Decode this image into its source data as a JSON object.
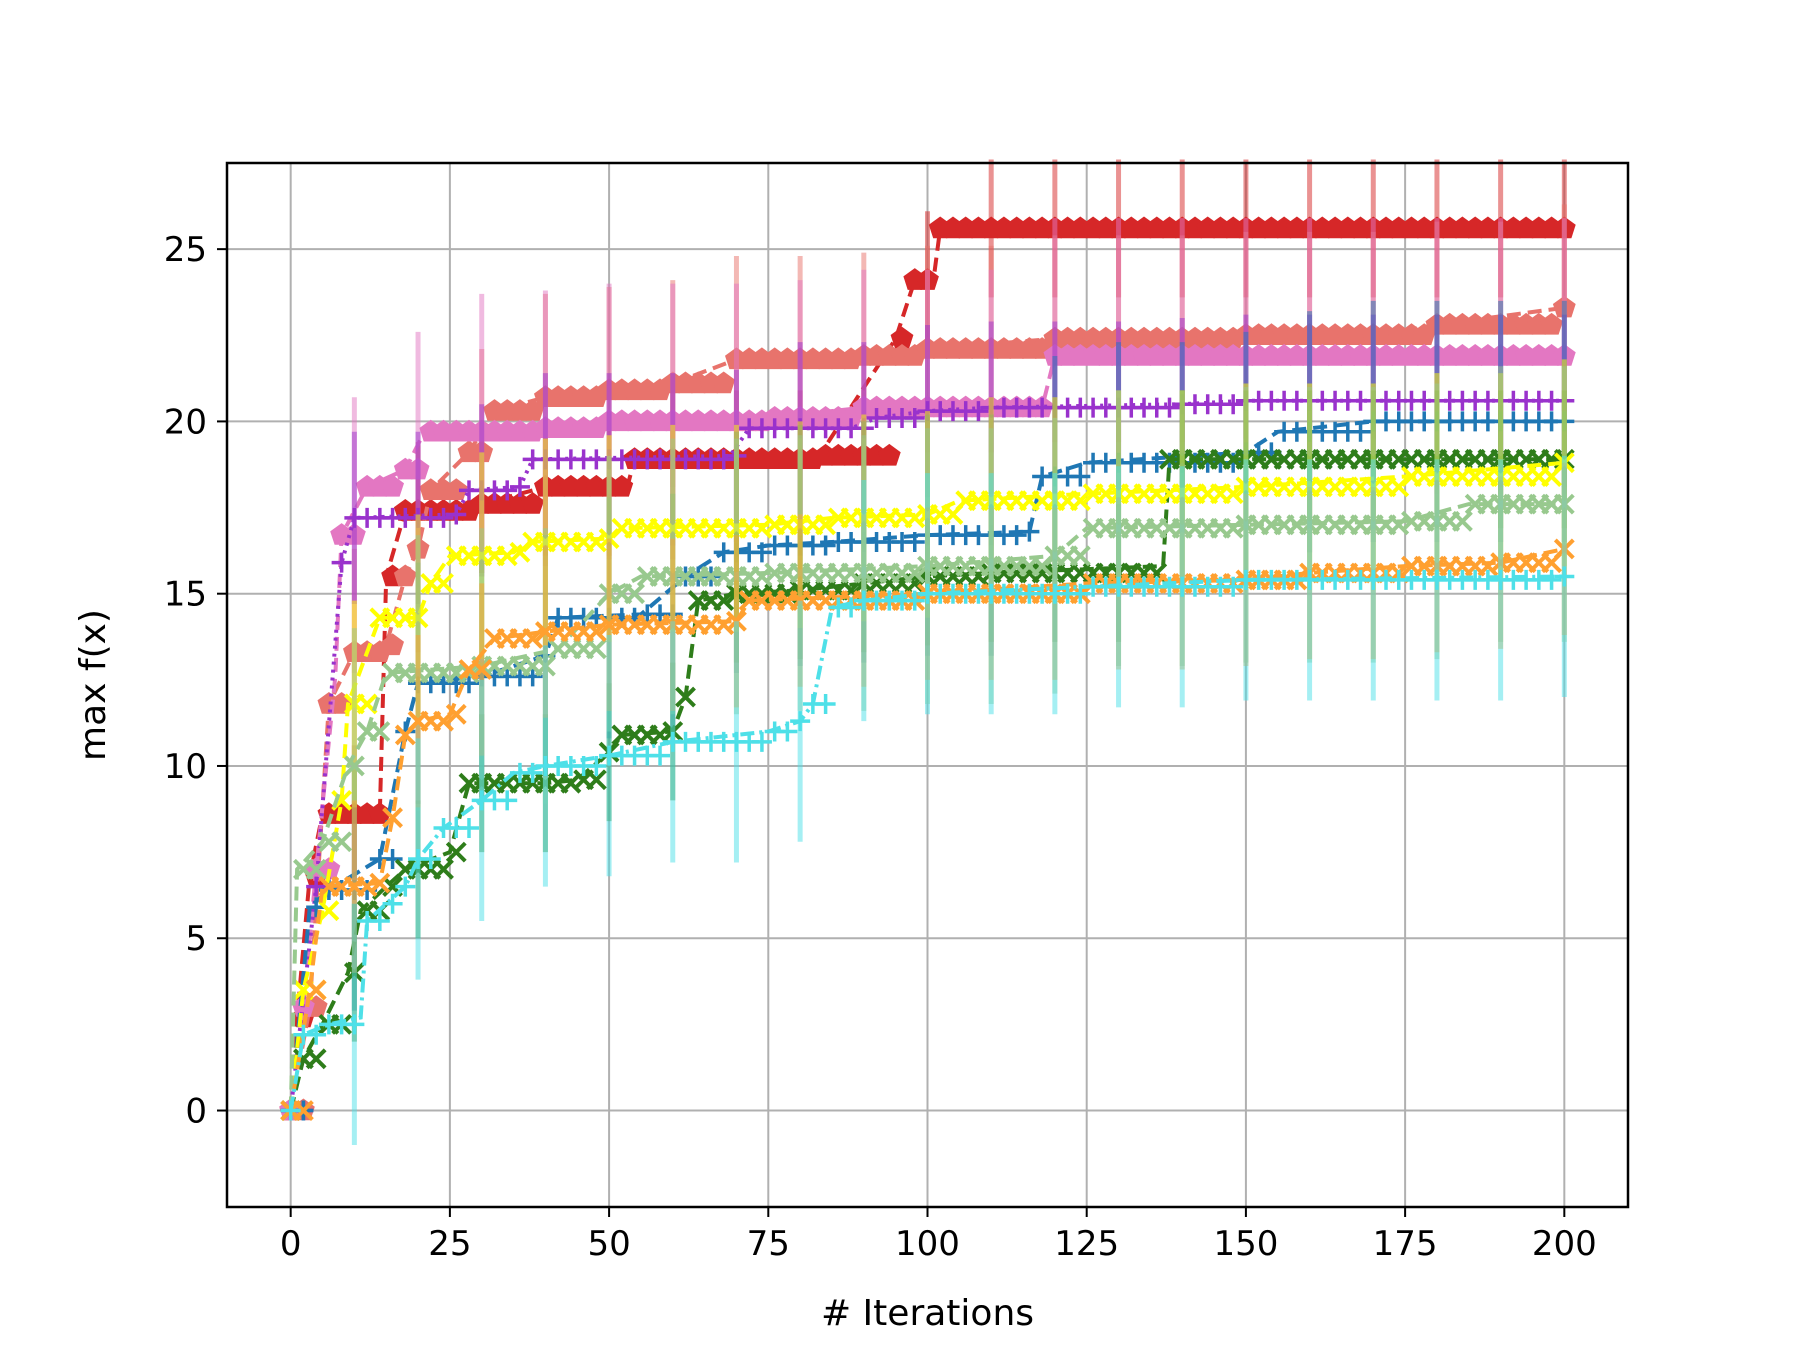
{
  "chart_data": {
    "type": "line",
    "title": "",
    "xlabel": "# Iterations",
    "ylabel": "max f(x)",
    "xlim": [
      -10,
      210
    ],
    "ylim": [
      -2.8,
      27.5
    ],
    "xticks": [
      0,
      25,
      50,
      75,
      100,
      125,
      150,
      175,
      200
    ],
    "yticks": [
      0,
      5,
      10,
      15,
      20,
      25
    ],
    "grid": true,
    "legend": "none",
    "series": [
      {
        "color": "#d62728",
        "marker": "pentagon",
        "linestyle": "dashed",
        "points": [
          [
            0,
            0
          ],
          [
            1,
            2.7
          ],
          [
            3,
            6.8
          ],
          [
            5,
            8.6
          ],
          [
            14,
            8.6
          ],
          [
            15,
            15.5
          ],
          [
            18,
            17.4
          ],
          [
            30,
            17.6
          ],
          [
            40,
            18.1
          ],
          [
            53,
            18.2
          ],
          [
            54,
            18.9
          ],
          [
            83,
            19.0
          ],
          [
            95,
            22.4
          ],
          [
            98,
            24.1
          ],
          [
            101,
            24.2
          ],
          [
            102,
            25.6
          ],
          [
            201,
            25.6
          ]
        ]
      },
      {
        "color": "#e8736c",
        "marker": "pentagon",
        "linestyle": "dashed",
        "points": [
          [
            0,
            0
          ],
          [
            3,
            3.0
          ],
          [
            6,
            11.8
          ],
          [
            10,
            13.3
          ],
          [
            15,
            13.5
          ],
          [
            18,
            15.5
          ],
          [
            20,
            16.3
          ],
          [
            22,
            18.0
          ],
          [
            28,
            19.1
          ],
          [
            32,
            20.3
          ],
          [
            40,
            20.7
          ],
          [
            50,
            20.9
          ],
          [
            60,
            21.1
          ],
          [
            70,
            21.8
          ],
          [
            90,
            21.9
          ],
          [
            100,
            22.1
          ],
          [
            120,
            22.4
          ],
          [
            150,
            22.5
          ],
          [
            170,
            22.5
          ],
          [
            180,
            22.8
          ],
          [
            200,
            23.3
          ]
        ]
      },
      {
        "color": "#e377c2",
        "marker": "pentagon",
        "linestyle": "dashed",
        "points": [
          [
            0,
            0
          ],
          [
            2,
            3.0
          ],
          [
            4,
            7.0
          ],
          [
            7,
            12.6
          ],
          [
            8,
            16.7
          ],
          [
            12,
            18.1
          ],
          [
            18,
            18.6
          ],
          [
            21,
            19.7
          ],
          [
            40,
            19.8
          ],
          [
            50,
            20.0
          ],
          [
            75,
            20.1
          ],
          [
            90,
            20.4
          ],
          [
            118,
            20.4
          ],
          [
            120,
            21.9
          ],
          [
            200,
            21.9
          ]
        ]
      },
      {
        "color": "#9932cc",
        "marker": "plus",
        "linestyle": "dotted",
        "points": [
          [
            0,
            0
          ],
          [
            4,
            6.5
          ],
          [
            8,
            15.9
          ],
          [
            10,
            17.2
          ],
          [
            26,
            17.3
          ],
          [
            28,
            18.0
          ],
          [
            36,
            18.1
          ],
          [
            38,
            18.9
          ],
          [
            69,
            19.0
          ],
          [
            72,
            19.8
          ],
          [
            88,
            19.8
          ],
          [
            92,
            20.1
          ],
          [
            100,
            20.3
          ],
          [
            110,
            20.4
          ],
          [
            140,
            20.5
          ],
          [
            150,
            20.6
          ],
          [
            200,
            20.6
          ]
        ]
      },
      {
        "color": "#1f77b4",
        "marker": "plus",
        "linestyle": "dashed",
        "points": [
          [
            0,
            0
          ],
          [
            3,
            5.9
          ],
          [
            6,
            6.4
          ],
          [
            14,
            7.3
          ],
          [
            18,
            11.0
          ],
          [
            20,
            12.4
          ],
          [
            30,
            12.6
          ],
          [
            40,
            13.2
          ],
          [
            42,
            14.3
          ],
          [
            55,
            14.4
          ],
          [
            62,
            15.5
          ],
          [
            68,
            16.2
          ],
          [
            75,
            16.4
          ],
          [
            85,
            16.5
          ],
          [
            100,
            16.7
          ],
          [
            116,
            16.8
          ],
          [
            118,
            18.4
          ],
          [
            125,
            18.8
          ],
          [
            150,
            19.1
          ],
          [
            155,
            19.7
          ],
          [
            170,
            20.0
          ],
          [
            200,
            20.0
          ]
        ]
      },
      {
        "color": "#2e7d1a",
        "marker": "x",
        "linestyle": "dashed",
        "points": [
          [
            0,
            0
          ],
          [
            2,
            1.5
          ],
          [
            5,
            2.5
          ],
          [
            9,
            4.0
          ],
          [
            11,
            5.8
          ],
          [
            15,
            6.5
          ],
          [
            18,
            7.0
          ],
          [
            25,
            7.5
          ],
          [
            28,
            9.5
          ],
          [
            40,
            9.5
          ],
          [
            45,
            9.6
          ],
          [
            50,
            10.4
          ],
          [
            52,
            10.9
          ],
          [
            60,
            11.0
          ],
          [
            62,
            12.0
          ],
          [
            64,
            14.8
          ],
          [
            70,
            15.0
          ],
          [
            80,
            15.1
          ],
          [
            90,
            15.3
          ],
          [
            100,
            15.5
          ],
          [
            110,
            15.6
          ],
          [
            137,
            15.8
          ],
          [
            138,
            18.9
          ],
          [
            200,
            18.9
          ]
        ]
      },
      {
        "color": "#ffff00",
        "marker": "x",
        "linestyle": "dashed",
        "points": [
          [
            0,
            0
          ],
          [
            2,
            3.5
          ],
          [
            5,
            5.8
          ],
          [
            8,
            9.0
          ],
          [
            9,
            11.8
          ],
          [
            14,
            14.3
          ],
          [
            20,
            14.3
          ],
          [
            22,
            15.3
          ],
          [
            25,
            16.1
          ],
          [
            35,
            16.2
          ],
          [
            37,
            16.5
          ],
          [
            50,
            16.6
          ],
          [
            52,
            16.9
          ],
          [
            75,
            17.0
          ],
          [
            85,
            17.2
          ],
          [
            100,
            17.3
          ],
          [
            105,
            17.7
          ],
          [
            125,
            17.9
          ],
          [
            150,
            18.1
          ],
          [
            175,
            18.4
          ],
          [
            200,
            18.8
          ]
        ]
      },
      {
        "color": "#98c98e",
        "marker": "x",
        "linestyle": "dashed",
        "points": [
          [
            0,
            0
          ],
          [
            1,
            7.0
          ],
          [
            5,
            7.8
          ],
          [
            9,
            10.0
          ],
          [
            12,
            11.0
          ],
          [
            15,
            12.7
          ],
          [
            30,
            12.9
          ],
          [
            42,
            13.4
          ],
          [
            50,
            15.0
          ],
          [
            55,
            15.5
          ],
          [
            75,
            15.6
          ],
          [
            100,
            15.8
          ],
          [
            120,
            16.1
          ],
          [
            125,
            16.9
          ],
          [
            150,
            17.0
          ],
          [
            175,
            17.1
          ],
          [
            185,
            17.6
          ],
          [
            200,
            17.6
          ]
        ]
      },
      {
        "color": "#ffa030",
        "marker": "x",
        "linestyle": "dashed",
        "points": [
          [
            0,
            0
          ],
          [
            3,
            3.5
          ],
          [
            5,
            6.5
          ],
          [
            14,
            6.6
          ],
          [
            16,
            8.5
          ],
          [
            18,
            10.9
          ],
          [
            20,
            11.3
          ],
          [
            25,
            11.5
          ],
          [
            28,
            12.8
          ],
          [
            32,
            13.7
          ],
          [
            40,
            13.9
          ],
          [
            50,
            14.1
          ],
          [
            70,
            14.2
          ],
          [
            72,
            14.8
          ],
          [
            100,
            15.0
          ],
          [
            125,
            15.3
          ],
          [
            150,
            15.4
          ],
          [
            160,
            15.6
          ],
          [
            175,
            15.8
          ],
          [
            190,
            15.9
          ],
          [
            200,
            16.3
          ]
        ]
      },
      {
        "color": "#4ee0e8",
        "marker": "plus",
        "linestyle": "dashdot",
        "points": [
          [
            0,
            0
          ],
          [
            2,
            2.2
          ],
          [
            6,
            2.5
          ],
          [
            11,
            2.7
          ],
          [
            12,
            5.5
          ],
          [
            15,
            6.0
          ],
          [
            18,
            6.5
          ],
          [
            20,
            7.3
          ],
          [
            24,
            8.2
          ],
          [
            30,
            9.0
          ],
          [
            35,
            9.8
          ],
          [
            40,
            10.0
          ],
          [
            50,
            10.3
          ],
          [
            60,
            10.7
          ],
          [
            75,
            11.0
          ],
          [
            80,
            11.3
          ],
          [
            82,
            11.8
          ],
          [
            85,
            14.6
          ],
          [
            90,
            14.8
          ],
          [
            100,
            15.0
          ],
          [
            125,
            15.2
          ],
          [
            150,
            15.4
          ],
          [
            200,
            15.5
          ]
        ]
      }
    ]
  }
}
